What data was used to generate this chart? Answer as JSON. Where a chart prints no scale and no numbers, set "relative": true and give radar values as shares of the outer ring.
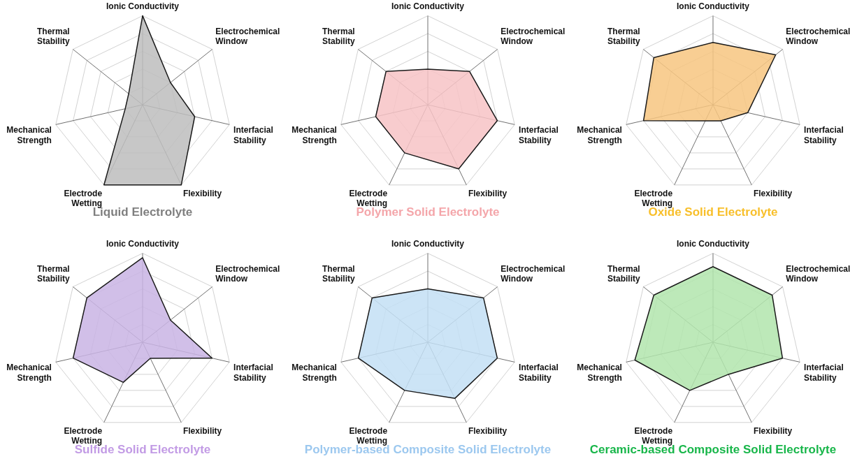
{
  "chart_data": [
    {
      "type": "radar",
      "title": "Liquid Electrolyte",
      "categories": [
        "Ionic Conductivity",
        "Electrochemical Window",
        "Interfacial Stability",
        "Flexibility",
        "Electrode Wetting",
        "Mechanical Strength",
        "Thermal Stability"
      ],
      "relative": true,
      "grid": true,
      "series": [
        {
          "color": "#bdbdbd",
          "values": [
            1.0,
            0.4,
            0.6,
            1.0,
            1.0,
            0.2,
            0.2
          ]
        }
      ]
    },
    {
      "type": "radar",
      "title": "Polymer Solid Electrolyte",
      "categories": [
        "Ionic Conductivity",
        "Electrochemical Window",
        "Interfacial Stability",
        "Flexibility",
        "Electrode Wetting",
        "Mechanical Strength",
        "Thermal Stability"
      ],
      "relative": true,
      "grid": true,
      "series": [
        {
          "color": "#f7c3c5",
          "values": [
            0.4,
            0.6,
            0.8,
            0.8,
            0.6,
            0.6,
            0.6
          ]
        }
      ]
    },
    {
      "type": "radar",
      "title": "Oxide Solid Electrolyte",
      "categories": [
        "Ionic Conductivity",
        "Electrochemical Window",
        "Interfacial Stability",
        "Flexibility",
        "Electrode Wetting",
        "Mechanical Strength",
        "Thermal Stability"
      ],
      "relative": true,
      "grid": true,
      "series": [
        {
          "color": "#f7c680",
          "values": [
            0.7,
            0.9,
            0.4,
            0.2,
            0.2,
            0.8,
            0.85
          ]
        }
      ]
    },
    {
      "type": "radar",
      "title": "Sulfide Solid Electrolyte",
      "categories": [
        "Ionic Conductivity",
        "Electrochemical Window",
        "Interfacial Stability",
        "Flexibility",
        "Electrode Wetting",
        "Mechanical Strength",
        "Thermal Stability"
      ],
      "relative": true,
      "grid": true,
      "series": [
        {
          "color": "#c9b4e4",
          "values": [
            0.95,
            0.4,
            0.8,
            0.2,
            0.5,
            0.8,
            0.8
          ]
        }
      ]
    },
    {
      "type": "radar",
      "title": "Polymer-based Composite Solid Electrolyte",
      "categories": [
        "Ionic Conductivity",
        "Electrochemical Window",
        "Interfacial Stability",
        "Flexibility",
        "Electrode Wetting",
        "Mechanical Strength",
        "Thermal Stability"
      ],
      "relative": true,
      "grid": true,
      "series": [
        {
          "color": "#c3dff4",
          "values": [
            0.6,
            0.8,
            0.8,
            0.7,
            0.6,
            0.8,
            0.8
          ]
        }
      ]
    },
    {
      "type": "radar",
      "title": "Ceramic-based Composite Solid Electrolyte",
      "categories": [
        "Ionic Conductivity",
        "Electrochemical Window",
        "Interfacial Stability",
        "Flexibility",
        "Electrode Wetting",
        "Mechanical Strength",
        "Thermal Stability"
      ],
      "relative": true,
      "grid": true,
      "series": [
        {
          "color": "#b2e5ad",
          "values": [
            0.85,
            0.85,
            0.8,
            0.4,
            0.6,
            0.9,
            0.85
          ]
        }
      ]
    }
  ]
}
